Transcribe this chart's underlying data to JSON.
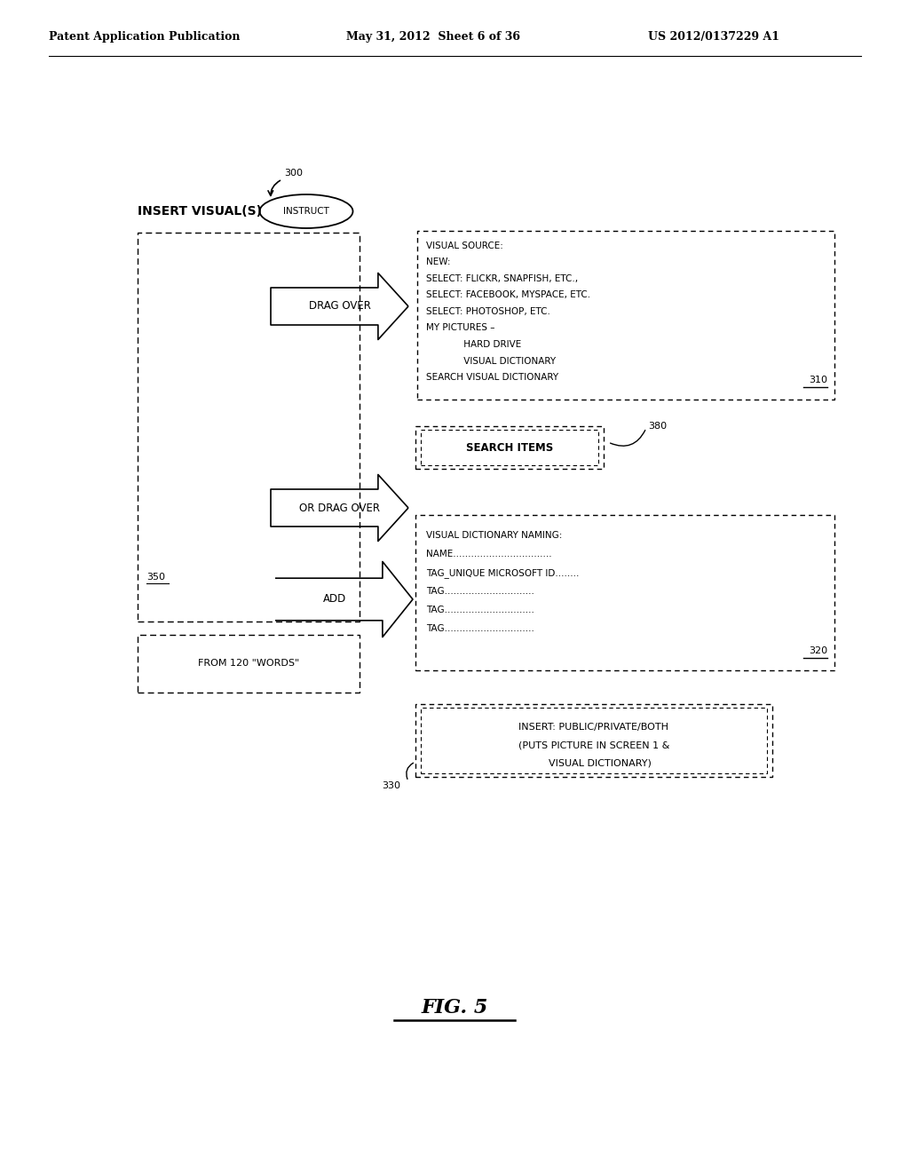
{
  "bg_color": "#ffffff",
  "header_left": "Patent Application Publication",
  "header_mid": "May 31, 2012  Sheet 6 of 36",
  "header_right": "US 2012/0137229 A1",
  "fig_label": "FIG. 5",
  "label_300": "300",
  "label_310": "310",
  "label_320": "320",
  "label_330": "330",
  "label_350": "350",
  "label_380": "380",
  "insert_visual_label": "INSERT VISUAL(S)",
  "instruct_label": "INSTRUCT",
  "drag_over_label": "DRAG OVER",
  "or_drag_over_label": "OR DRAG OVER",
  "add_label": "ADD",
  "from_words_label": "FROM 120 \"WORDS\"",
  "box310_lines": [
    "VISUAL SOURCE:",
    "NEW:",
    "SELECT: FLICKR, SNAPFISH, ETC.,",
    "SELECT: FACEBOOK, MYSPACE, ETC.",
    "SELECT: PHOTOSHOP, ETC.",
    "MY PICTURES –",
    "             HARD DRIVE",
    "             VISUAL DICTIONARY",
    "SEARCH VISUAL DICTIONARY"
  ],
  "box380_text": "SEARCH ITEMS",
  "box320_lines": [
    "VISUAL DICTIONARY NAMING:",
    "NAME.................................",
    "TAG_UNIQUE MICROSOFT ID........",
    "TAG..............................",
    "TAG..............................",
    "TAG.............................."
  ],
  "box330_lines": [
    "INSERT: PUBLIC/PRIVATE/BOTH",
    "(PUTS PICTURE IN SCREEN 1 &",
    "    VISUAL DICTIONARY)"
  ]
}
